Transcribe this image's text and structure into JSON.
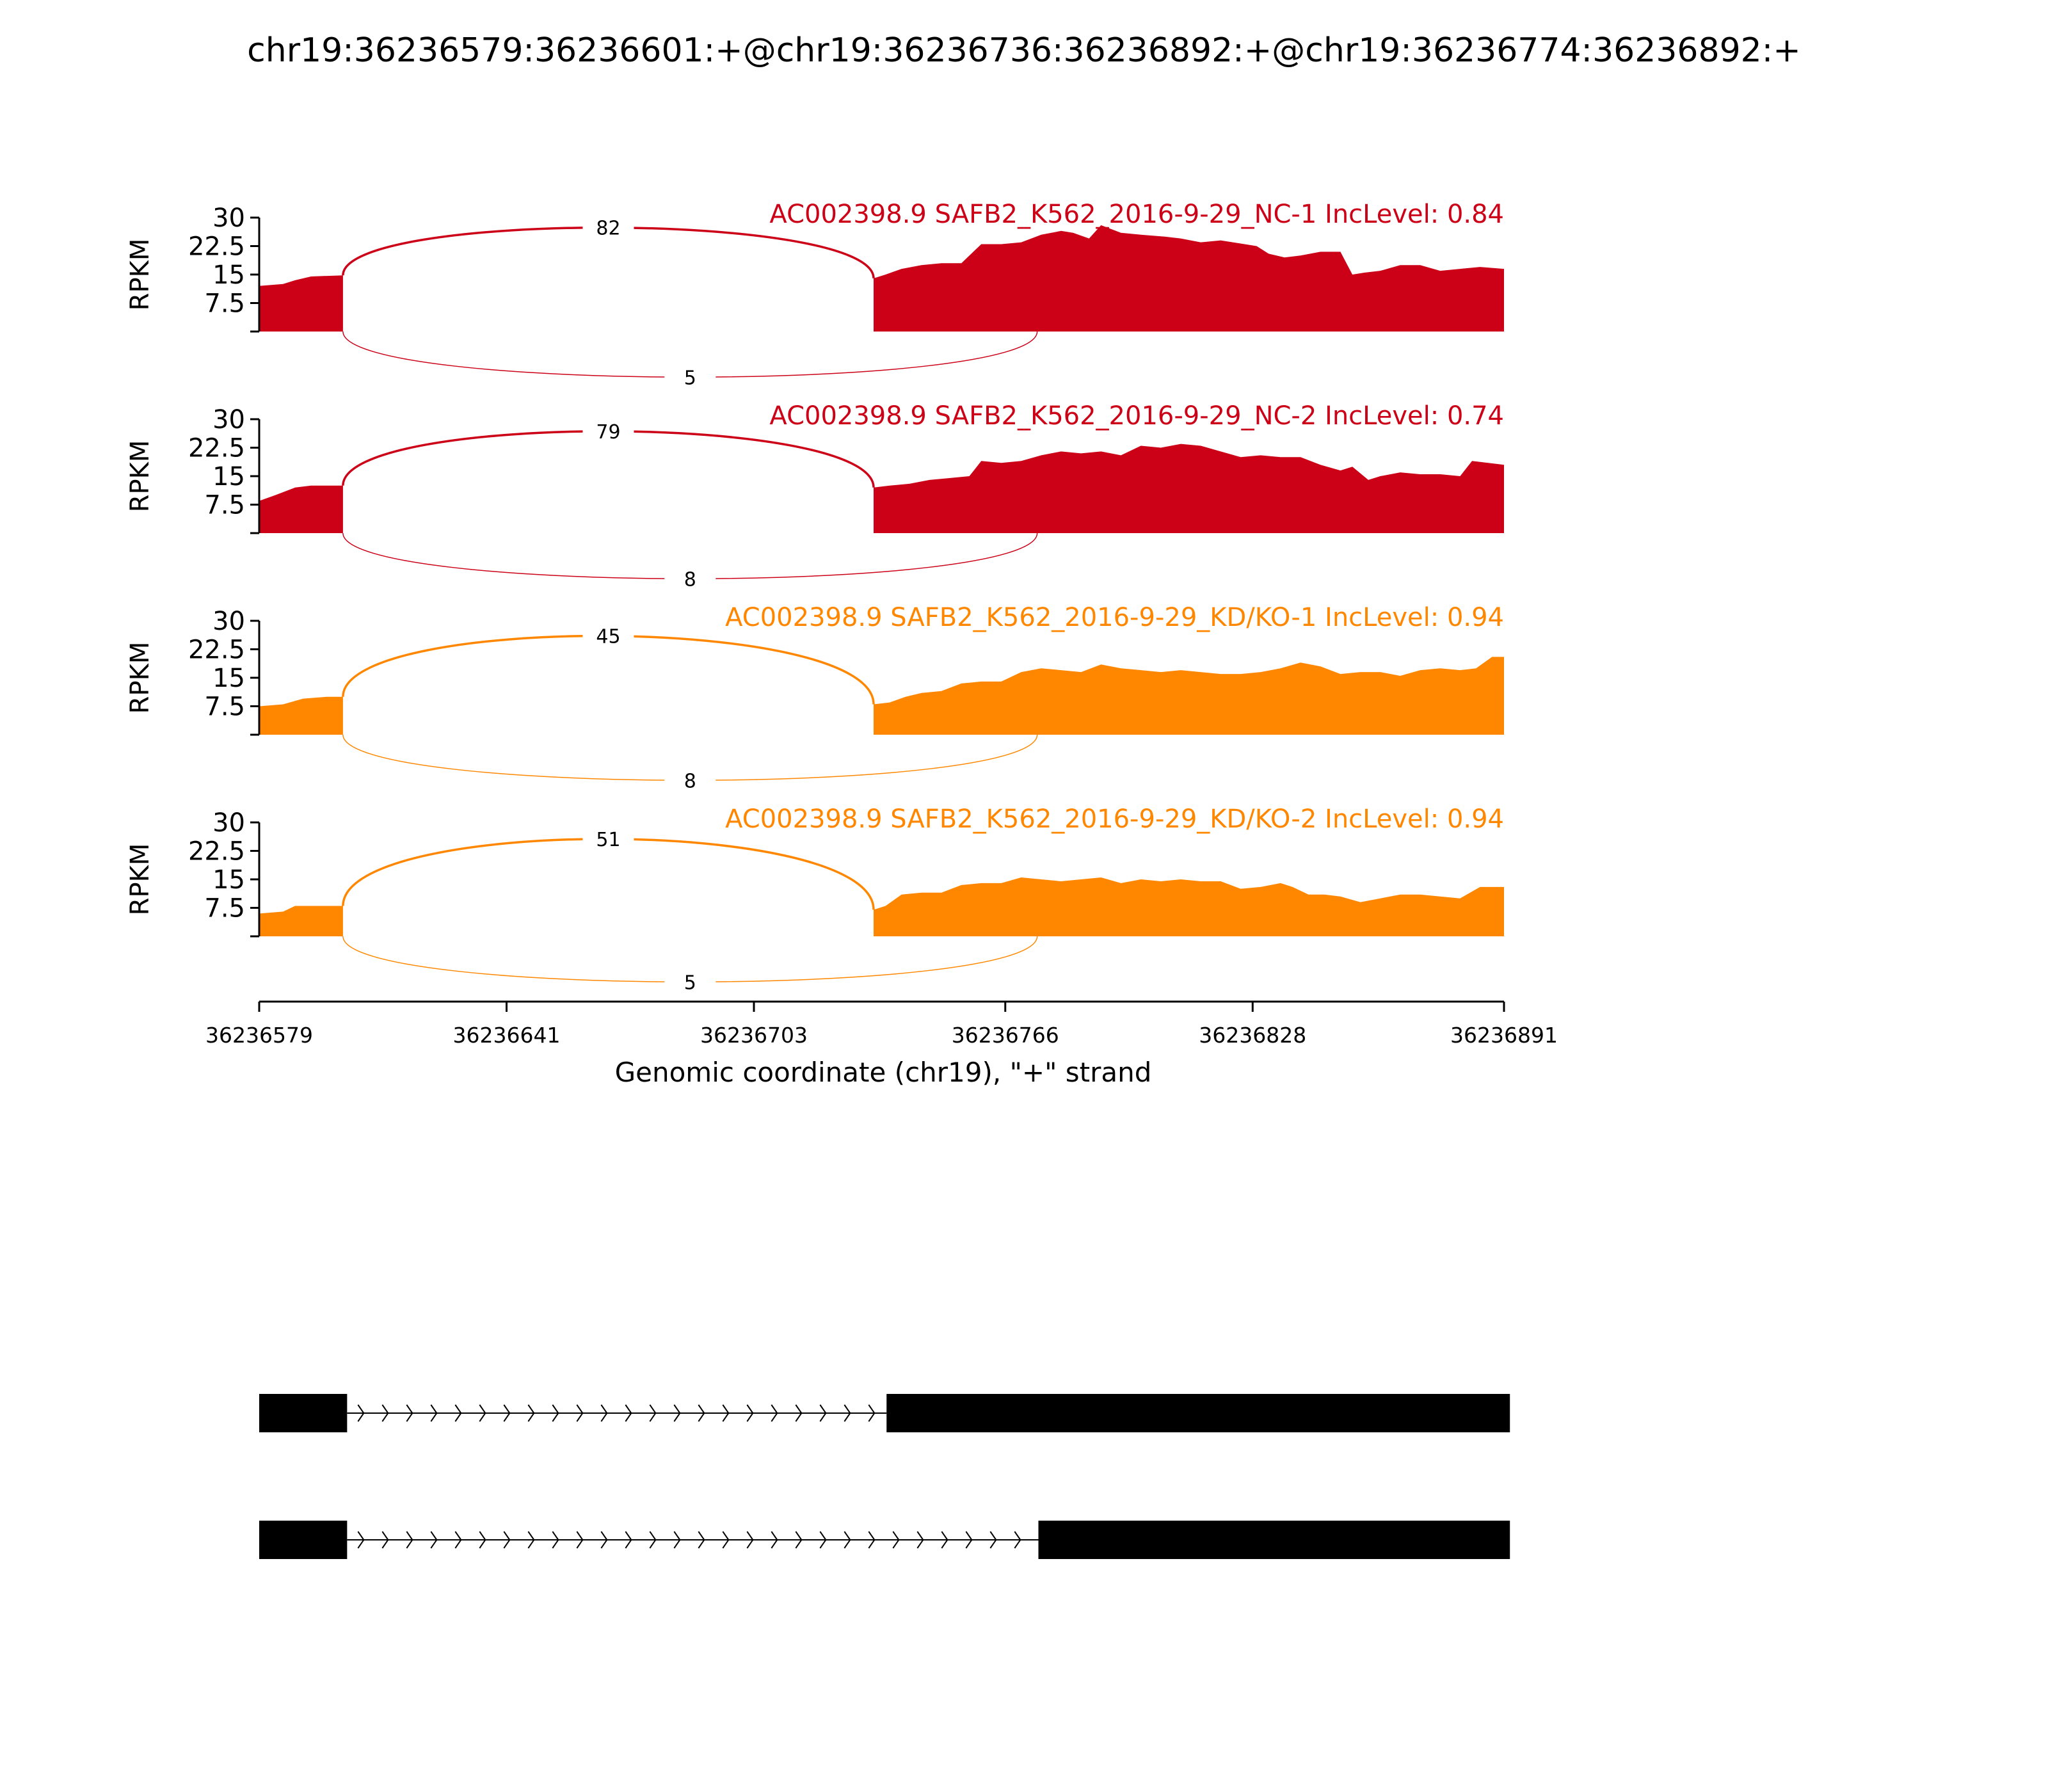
{
  "title": "chr19:36236579:36236601:+@chr19:36236736:36236892:+@chr19:36236774:36236892:+",
  "chart_data": {
    "type": "area",
    "subtype": "sashimi",
    "ylabel": "RPKM",
    "xlabel": "Genomic coordinate (chr19), \"+\" strand",
    "ylim": [
      0,
      30
    ],
    "yticks": [
      "30",
      "22.5",
      "15",
      "7.5"
    ],
    "xlim": [
      36236579,
      36236891
    ],
    "xticks": [
      "36236579",
      "36236641",
      "36236703",
      "36236766",
      "36236828",
      "36236891"
    ],
    "exons": [
      [
        36236579,
        36236600
      ],
      [
        36236733,
        36236891
      ]
    ],
    "panels": [
      {
        "label": "AC002398.9 SAFB2_K562_2016-9-29_NC-1 IncLevel: 0.84",
        "color": "#CC0017",
        "coverage": {
          "x": [
            36236579,
            36236585,
            36236588,
            36236592,
            36236600,
            36236733,
            36236736,
            36236740,
            36236745,
            36236750,
            36236755,
            36236760,
            36236765,
            36236770,
            36236775,
            36236780,
            36236783,
            36236787,
            36236790,
            36236795,
            36236800,
            36236806,
            36236810,
            36236815,
            36236820,
            36236826,
            36236829,
            36236832,
            36236836,
            36236840,
            36236845,
            36236850,
            36236853,
            36236856,
            36236860,
            36236865,
            36236870,
            36236875,
            36236880,
            36236885,
            36236891
          ],
          "y": [
            12,
            12.5,
            13.5,
            14.5,
            14.8,
            14,
            15,
            16.5,
            17.5,
            18,
            18,
            23,
            23,
            23.5,
            25.5,
            26.5,
            26,
            24.5,
            28,
            26,
            25.5,
            25,
            24.5,
            23.5,
            24,
            23,
            22.5,
            20.5,
            19.5,
            20,
            21,
            21,
            15,
            15.5,
            16,
            17.5,
            17.5,
            16,
            16.5,
            17,
            16.5
          ]
        },
        "junctions": [
          {
            "from": 36236600,
            "to": 36236733,
            "count": "82",
            "side": "above"
          },
          {
            "from": 36236600,
            "to": 36236774,
            "count": "5",
            "side": "below"
          }
        ]
      },
      {
        "label": "AC002398.9 SAFB2_K562_2016-9-29_NC-2 IncLevel: 0.74",
        "color": "#CC0017",
        "coverage": {
          "x": [
            36236579,
            36236583,
            36236588,
            36236592,
            36236600,
            36236733,
            36236737,
            36236742,
            36236747,
            36236752,
            36236757,
            36236760,
            36236765,
            36236770,
            36236775,
            36236780,
            36236785,
            36236790,
            36236795,
            36236800,
            36236805,
            36236810,
            36236815,
            36236820,
            36236825,
            36236830,
            36236835,
            36236840,
            36236845,
            36236850,
            36236853,
            36236857,
            36236860,
            36236865,
            36236870,
            36236875,
            36236880,
            36236883,
            36236887,
            36236891
          ],
          "y": [
            8.5,
            10,
            12,
            12.5,
            12.5,
            12,
            12.5,
            13,
            14,
            14.5,
            15,
            19,
            18.5,
            19,
            20.5,
            21.5,
            21,
            21.5,
            20.5,
            23,
            22.5,
            23.5,
            23,
            21.5,
            20,
            20.5,
            20,
            20,
            18,
            16.5,
            17.5,
            14,
            15,
            16,
            15.5,
            15.5,
            15,
            19,
            18.5,
            18
          ]
        },
        "junctions": [
          {
            "from": 36236600,
            "to": 36236733,
            "count": "79",
            "side": "above"
          },
          {
            "from": 36236600,
            "to": 36236774,
            "count": "8",
            "side": "below"
          }
        ]
      },
      {
        "label": "AC002398.9 SAFB2_K562_2016-9-29_KD/KO-1 IncLevel: 0.94",
        "color": "#FF8700",
        "coverage": {
          "x": [
            36236579,
            36236585,
            36236590,
            36236596,
            36236600,
            36236733,
            36236737,
            36236741,
            36236745,
            36236750,
            36236755,
            36236760,
            36236765,
            36236770,
            36236775,
            36236780,
            36236785,
            36236790,
            36236795,
            36236800,
            36236805,
            36236810,
            36236815,
            36236820,
            36236825,
            36236830,
            36236835,
            36236840,
            36236845,
            36236850,
            36236855,
            36236860,
            36236865,
            36236870,
            36236875,
            36236880,
            36236884,
            36236888,
            36236891
          ],
          "y": [
            7.5,
            8,
            9.5,
            10,
            10,
            8,
            8.5,
            10,
            11,
            11.5,
            13.5,
            14,
            14,
            16.5,
            17.5,
            17,
            16.5,
            18.5,
            17.5,
            17,
            16.5,
            17,
            16.5,
            16,
            16,
            16.5,
            17.5,
            19,
            18,
            16,
            16.5,
            16.5,
            15.5,
            17,
            17.5,
            17,
            17.5,
            20.5,
            20.5
          ]
        },
        "junctions": [
          {
            "from": 36236600,
            "to": 36236733,
            "count": "45",
            "side": "above"
          },
          {
            "from": 36236600,
            "to": 36236774,
            "count": "8",
            "side": "below"
          }
        ]
      },
      {
        "label": "AC002398.9 SAFB2_K562_2016-9-29_KD/KO-2 IncLevel: 0.94",
        "color": "#FF8700",
        "coverage": {
          "x": [
            36236579,
            36236585,
            36236588,
            36236592,
            36236600,
            36236733,
            36236736,
            36236740,
            36236745,
            36236750,
            36236755,
            36236760,
            36236765,
            36236770,
            36236775,
            36236780,
            36236785,
            36236790,
            36236795,
            36236800,
            36236805,
            36236810,
            36236815,
            36236820,
            36236825,
            36236830,
            36236835,
            36236838,
            36236842,
            36236846,
            36236850,
            36236855,
            36236860,
            36236865,
            36236870,
            36236875,
            36236880,
            36236885,
            36236891
          ],
          "y": [
            6,
            6.5,
            8,
            8,
            8,
            7,
            8,
            11,
            11.5,
            11.5,
            13.5,
            14,
            14,
            15.5,
            15,
            14.5,
            15,
            15.5,
            14,
            15,
            14.5,
            15,
            14.5,
            14.5,
            12.5,
            13,
            14,
            13,
            11,
            11,
            10.5,
            9,
            10,
            11,
            11,
            10.5,
            10,
            13,
            13
          ]
        },
        "junctions": [
          {
            "from": 36236600,
            "to": 36236733,
            "count": "51",
            "side": "above"
          },
          {
            "from": 36236600,
            "to": 36236774,
            "count": "5",
            "side": "below"
          }
        ]
      }
    ],
    "transcripts": [
      {
        "exons": [
          [
            36236579,
            36236601
          ],
          [
            36236736,
            36236892
          ]
        ]
      },
      {
        "exons": [
          [
            36236579,
            36236601
          ],
          [
            36236774,
            36236892
          ]
        ]
      }
    ]
  }
}
